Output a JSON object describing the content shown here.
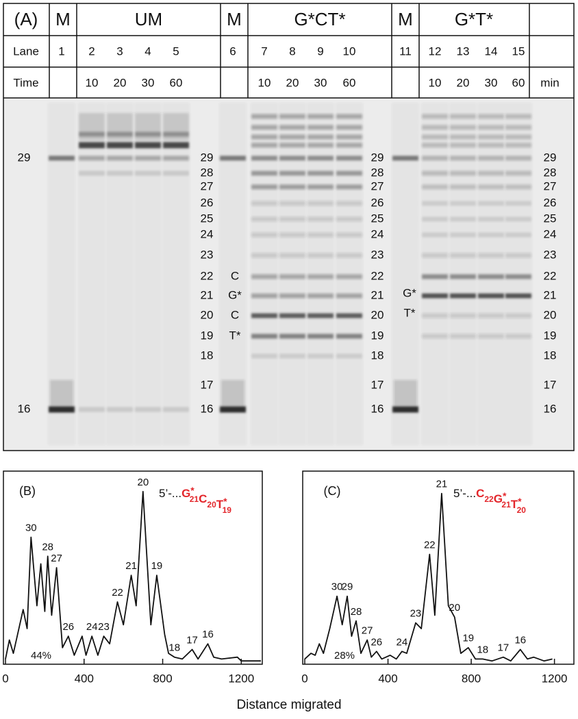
{
  "panel_a": {
    "label": "(A)",
    "groups": [
      "M",
      "UM",
      "M",
      "G*CT*",
      "M",
      "G*T*"
    ],
    "lane_label": "Lane",
    "lanes": [
      "1",
      "2",
      "3",
      "4",
      "5",
      "6",
      "7",
      "8",
      "9",
      "10",
      "11",
      "12",
      "13",
      "14",
      "15"
    ],
    "time_label": "Time",
    "times": [
      [
        "10",
        "20",
        "30",
        "60"
      ],
      [
        "10",
        "20",
        "30",
        "60"
      ],
      [
        "10",
        "20",
        "30",
        "60"
      ]
    ],
    "time_unit": "min",
    "marker_sizes": [
      "29",
      "16"
    ],
    "ladder": [
      "29",
      "28",
      "27",
      "26",
      "25",
      "24",
      "23",
      "22",
      "21",
      "20",
      "19",
      "18",
      "17",
      "16"
    ],
    "annotations_gct": [
      "C",
      "G*",
      "C",
      "T*"
    ],
    "annotations_gt": [
      "G*",
      "T*"
    ]
  },
  "chart_data": [
    {
      "type": "line",
      "label": "(B)",
      "sequence": {
        "prefix": "5’-...",
        "parts": [
          {
            "base": "G",
            "mark": "*",
            "sub": "21"
          },
          {
            "base": "C",
            "mark": null,
            "sub": "20"
          },
          {
            "base": "T",
            "mark": "*",
            "sub": "19"
          }
        ]
      },
      "note": "44%",
      "x": [
        0,
        20,
        40,
        90,
        110,
        130,
        160,
        180,
        200,
        215,
        235,
        260,
        290,
        320,
        350,
        390,
        410,
        440,
        470,
        500,
        530,
        570,
        600,
        640,
        665,
        700,
        740,
        770,
        810,
        830,
        860,
        900,
        950,
        980,
        1030,
        1060,
        1100,
        1180,
        1200,
        1300
      ],
      "values": [
        2,
        12,
        5,
        28,
        18,
        66,
        30,
        52,
        27,
        56,
        25,
        50,
        8,
        14,
        4,
        14,
        4,
        14,
        4,
        14,
        10,
        32,
        20,
        46,
        30,
        90,
        20,
        46,
        15,
        5,
        3,
        2,
        7,
        2,
        10,
        3,
        2,
        3,
        1,
        1
      ],
      "peak_labels": [
        {
          "text": "30",
          "x": 130
        },
        {
          "text": "28",
          "x": 215
        },
        {
          "text": "27",
          "x": 260
        },
        {
          "text": "26",
          "x": 320
        },
        {
          "text": "24",
          "x": 440
        },
        {
          "text": "23",
          "x": 500
        },
        {
          "text": "22",
          "x": 570
        },
        {
          "text": "21",
          "x": 640
        },
        {
          "text": "20",
          "x": 700
        },
        {
          "text": "19",
          "x": 770
        },
        {
          "text": "18",
          "x": 860
        },
        {
          "text": "17",
          "x": 950
        },
        {
          "text": "16",
          "x": 1030
        }
      ],
      "xlim": [
        0,
        1300
      ],
      "xticks": [
        0,
        400,
        800,
        1200
      ],
      "ylim": [
        0,
        100
      ]
    },
    {
      "type": "line",
      "label": "(C)",
      "sequence": {
        "prefix": "5’-...",
        "parts": [
          {
            "base": "C",
            "mark": null,
            "sub": "22"
          },
          {
            "base": "G",
            "mark": "*",
            "sub": "21"
          },
          {
            "base": "T",
            "mark": "*",
            "sub": "20"
          }
        ]
      },
      "note": "28%",
      "x": [
        0,
        30,
        50,
        70,
        90,
        120,
        155,
        180,
        204,
        225,
        247,
        270,
        300,
        320,
        345,
        370,
        410,
        440,
        467,
        490,
        533,
        560,
        600,
        625,
        658,
        690,
        720,
        750,
        786,
        820,
        855,
        900,
        954,
        990,
        1036,
        1070,
        1100,
        1150,
        1190
      ],
      "values": [
        2,
        5,
        4,
        10,
        5,
        18,
        35,
        20,
        35,
        14,
        22,
        5,
        12,
        3,
        6,
        2,
        4,
        2,
        6,
        5,
        21,
        18,
        57,
        25,
        89,
        30,
        24,
        5,
        8,
        2,
        2,
        1,
        3,
        1,
        7,
        2,
        3,
        1,
        2
      ],
      "peak_labels": [
        {
          "text": "30",
          "x": 155
        },
        {
          "text": "29",
          "x": 204
        },
        {
          "text": "28",
          "x": 247
        },
        {
          "text": "27",
          "x": 300
        },
        {
          "text": "26",
          "x": 345
        },
        {
          "text": "24",
          "x": 467
        },
        {
          "text": "23",
          "x": 533
        },
        {
          "text": "22",
          "x": 600
        },
        {
          "text": "21",
          "x": 658
        },
        {
          "text": "20",
          "x": 720
        },
        {
          "text": "19",
          "x": 786
        },
        {
          "text": "18",
          "x": 855
        },
        {
          "text": "17",
          "x": 954
        },
        {
          "text": "16",
          "x": 1036
        }
      ],
      "xlim": [
        0,
        1300
      ],
      "xticks": [
        0,
        400,
        800,
        1200
      ],
      "ylim": [
        0,
        100
      ]
    }
  ],
  "x_label": "Distance migrated"
}
